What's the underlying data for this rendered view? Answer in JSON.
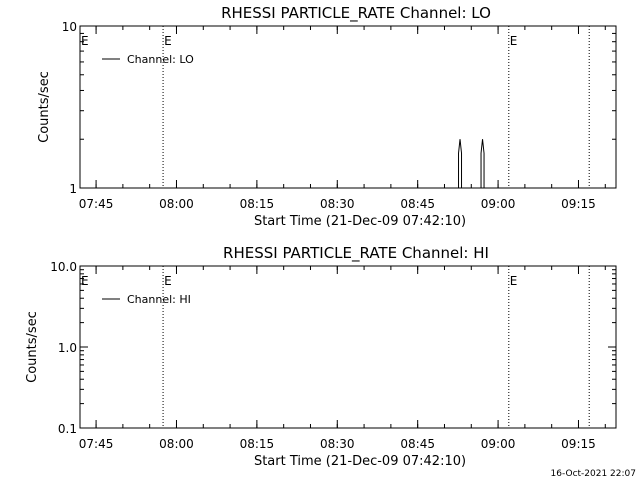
{
  "footer_timestamp": "16-Oct-2021 22:07",
  "chart_data": [
    {
      "type": "line",
      "title": "RHESSI PARTICLE_RATE Channel: LO",
      "ylabel": "Counts/sec",
      "xlabel": "Start Time (21-Dec-09 07:42:10)",
      "y_scale": "log",
      "ylim": [
        1,
        10
      ],
      "y_ticks": [
        {
          "value": 1,
          "label": "1"
        },
        {
          "value": 10,
          "label": "10"
        }
      ],
      "xlim_minutes_after_0742": [
        0,
        100
      ],
      "x_ticks": [
        {
          "minutes": 3,
          "label": "07:45"
        },
        {
          "minutes": 18,
          "label": "08:00"
        },
        {
          "minutes": 33,
          "label": "08:15"
        },
        {
          "minutes": 48,
          "label": "08:30"
        },
        {
          "minutes": 63,
          "label": "08:45"
        },
        {
          "minutes": 78,
          "label": "09:00"
        },
        {
          "minutes": 93,
          "label": "09:15"
        }
      ],
      "event_lines": [
        {
          "minutes": 15.5,
          "marker": "E"
        },
        {
          "minutes": 80,
          "marker": "E"
        },
        {
          "minutes": 95,
          "marker": ""
        }
      ],
      "legend": {
        "entries": [
          "Channel: LO"
        ],
        "placement": "top-left"
      },
      "series": [
        {
          "name": "Channel: LO",
          "spikes": [
            {
              "minutes": 70.9,
              "value": 2.0
            },
            {
              "minutes": 75.1,
              "value": 2.0
            }
          ]
        }
      ]
    },
    {
      "type": "line",
      "title": "RHESSI PARTICLE_RATE Channel: HI",
      "ylabel": "Counts/sec",
      "xlabel": "Start Time (21-Dec-09 07:42:10)",
      "y_scale": "log",
      "ylim": [
        0.1,
        10
      ],
      "y_ticks": [
        {
          "value": 0.1,
          "label": "0.1"
        },
        {
          "value": 1,
          "label": "1.0"
        },
        {
          "value": 10,
          "label": "10.0"
        }
      ],
      "xlim_minutes_after_0742": [
        0,
        100
      ],
      "x_ticks": [
        {
          "minutes": 3,
          "label": "07:45"
        },
        {
          "minutes": 18,
          "label": "08:00"
        },
        {
          "minutes": 33,
          "label": "08:15"
        },
        {
          "minutes": 48,
          "label": "08:30"
        },
        {
          "minutes": 63,
          "label": "08:45"
        },
        {
          "minutes": 78,
          "label": "09:00"
        },
        {
          "minutes": 93,
          "label": "09:15"
        }
      ],
      "event_lines": [
        {
          "minutes": 15.5,
          "marker": "E"
        },
        {
          "minutes": 80,
          "marker": "E"
        },
        {
          "minutes": 95,
          "marker": ""
        }
      ],
      "legend": {
        "entries": [
          "Channel: HI"
        ],
        "placement": "top-left"
      },
      "series": [
        {
          "name": "Channel: HI",
          "spikes": []
        }
      ]
    }
  ]
}
